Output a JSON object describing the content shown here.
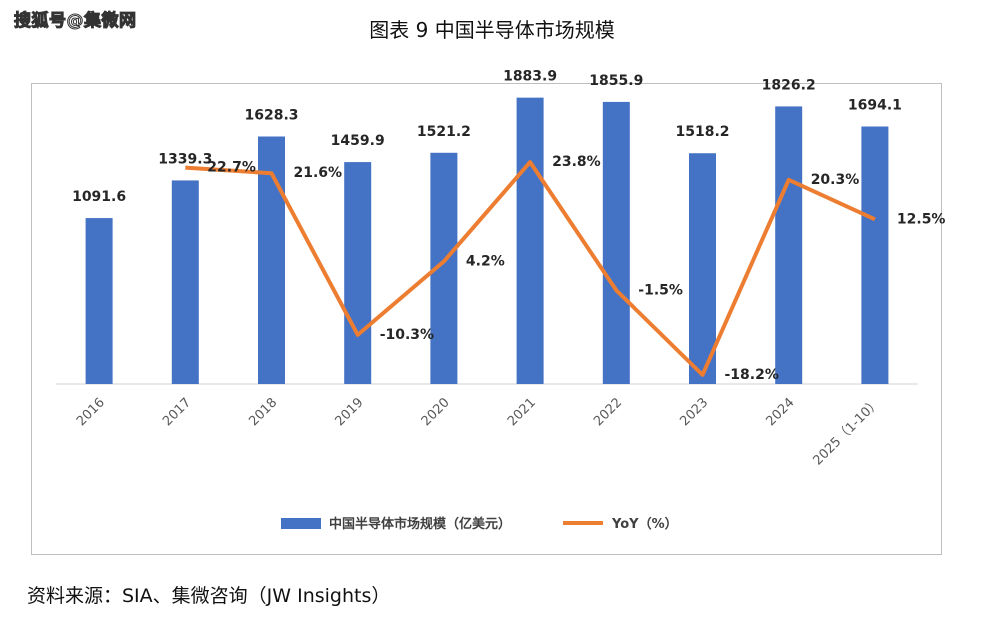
{
  "watermark": "搜狐号@集微网",
  "chart_data": {
    "type": "bar+line",
    "title": "图表 9 中国半导体市场规模",
    "categories": [
      "2016",
      "2017",
      "2018",
      "2019",
      "2020",
      "2021",
      "2022",
      "2023",
      "2024",
      "2025（1-10）"
    ],
    "series": [
      {
        "name": "中国半导体市场规模（亿美元）",
        "type": "bar",
        "color": "#4472C4",
        "values": [
          1091.6,
          1339.3,
          1628.3,
          1459.9,
          1521.2,
          1883.9,
          1855.9,
          1518.2,
          1826.2,
          1694.1
        ],
        "labels": [
          "1091.6",
          "1339.3",
          "1628.3",
          "1459.9",
          "1521.2",
          "1883.9",
          "1855.9",
          "1518.2",
          "1826.2",
          "1694.1"
        ]
      },
      {
        "name": "YoY（%）",
        "type": "line",
        "color": "#ED7D31",
        "values": [
          null,
          22.7,
          21.6,
          -10.3,
          4.2,
          23.8,
          -1.5,
          -18.2,
          20.3,
          12.5
        ],
        "labels": [
          "",
          "22.7%",
          "21.6%",
          "-10.3%",
          "4.2%",
          "23.8%",
          "-1.5%",
          "-18.2%",
          "20.3%",
          "12.5%"
        ]
      }
    ],
    "ylim_bar": [
      0,
      2000
    ],
    "ylim_line": [
      -20,
      40
    ],
    "legend": "bottom-center"
  },
  "source": "资料来源：SIA、集微咨询（JW Insights）"
}
